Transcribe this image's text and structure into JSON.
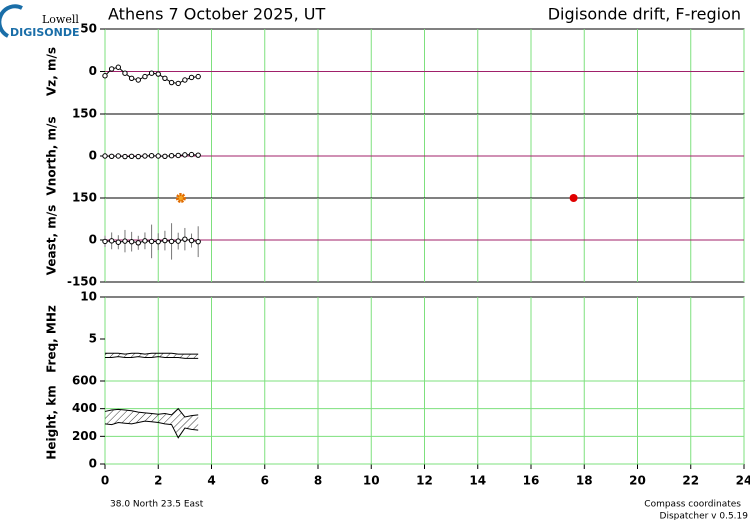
{
  "header": {
    "logo_top": "Lowell",
    "logo_bottom": "DIGISONDE",
    "title": "Athens  7 October 2025, UT",
    "subtitle": "Digisonde drift, F-region"
  },
  "footer": {
    "location": "38.0 North   23.5 East",
    "coords": "Compass coordinates",
    "version": "Dispatcher v 0.5.19"
  },
  "chart_data": [
    {
      "type": "scatter",
      "ylabel": "Vz, m/s",
      "ylim": [
        -50,
        50
      ],
      "yticks": [
        50,
        0
      ],
      "color": "#000000",
      "x": [
        0,
        0.25,
        0.5,
        0.75,
        1,
        1.25,
        1.5,
        1.75,
        2,
        2.25,
        2.5,
        2.75,
        3,
        3.25,
        3.5
      ],
      "values": [
        -5,
        3,
        5,
        -2,
        -8,
        -10,
        -6,
        -2,
        -3,
        -8,
        -13,
        -14,
        -10,
        -7,
        -6
      ]
    },
    {
      "type": "scatter",
      "ylabel": "Vnorth, m/s",
      "ylim": [
        -150,
        150
      ],
      "yticks": [
        150,
        0
      ],
      "color": "#000000",
      "x": [
        0,
        0.25,
        0.5,
        0.75,
        1,
        1.25,
        1.5,
        1.75,
        2,
        2.25,
        2.5,
        2.75,
        3,
        3.25,
        3.5
      ],
      "values": [
        0,
        -1,
        0,
        -2,
        -1,
        -2,
        0,
        1,
        0,
        -1,
        1,
        2,
        4,
        5,
        3
      ]
    },
    {
      "type": "scatter",
      "ylabel": "Veast, m/s",
      "ylim": [
        -150,
        150
      ],
      "yticks": [
        150,
        0,
        -150
      ],
      "color": "#000000",
      "x": [
        0,
        0.25,
        0.5,
        0.75,
        1,
        1.25,
        1.5,
        1.75,
        2,
        2.25,
        2.5,
        2.75,
        3,
        3.25,
        3.5
      ],
      "values": [
        -5,
        -3,
        -8,
        -4,
        -6,
        -10,
        -3,
        -5,
        -6,
        -2,
        -5,
        -4,
        3,
        -2,
        -6
      ],
      "errors": [
        20,
        30,
        25,
        40,
        35,
        25,
        30,
        60,
        30,
        35,
        65,
        30,
        40,
        25,
        55
      ],
      "sunrise": 2.85,
      "sunset": 17.6
    },
    {
      "type": "band",
      "ylabel": "Freq, MHz",
      "ylim": [
        0,
        10
      ],
      "yticks": [
        10,
        5
      ],
      "x": [
        0,
        0.25,
        0.5,
        0.75,
        1,
        1.25,
        1.5,
        1.75,
        2,
        2.25,
        2.5,
        2.75,
        3,
        3.25,
        3.5
      ],
      "low": [
        2.8,
        2.8,
        2.9,
        2.8,
        2.8,
        2.9,
        2.8,
        2.8,
        2.9,
        2.8,
        2.8,
        2.8,
        2.7,
        2.7,
        2.7
      ],
      "high": [
        3.3,
        3.3,
        3.3,
        3.2,
        3.3,
        3.3,
        3.2,
        3.3,
        3.3,
        3.3,
        3.3,
        3.2,
        3.2,
        3.2,
        3.2
      ]
    },
    {
      "type": "band",
      "ylabel": "Height, km",
      "ylim": [
        0,
        600
      ],
      "yticks": [
        600,
        400,
        200,
        0
      ],
      "grid": true,
      "xlim": [
        0,
        24
      ],
      "xticks": [
        0,
        2,
        4,
        6,
        8,
        10,
        12,
        14,
        16,
        18,
        20,
        22,
        24
      ],
      "x": [
        0,
        0.25,
        0.5,
        0.75,
        1,
        1.25,
        1.5,
        1.75,
        2,
        2.25,
        2.5,
        2.75,
        3,
        3.25,
        3.5
      ],
      "low": [
        290,
        285,
        300,
        295,
        290,
        300,
        310,
        305,
        300,
        290,
        285,
        190,
        260,
        250,
        245
      ],
      "high": [
        380,
        390,
        395,
        390,
        385,
        375,
        370,
        365,
        360,
        365,
        355,
        400,
        340,
        350,
        355
      ]
    }
  ]
}
